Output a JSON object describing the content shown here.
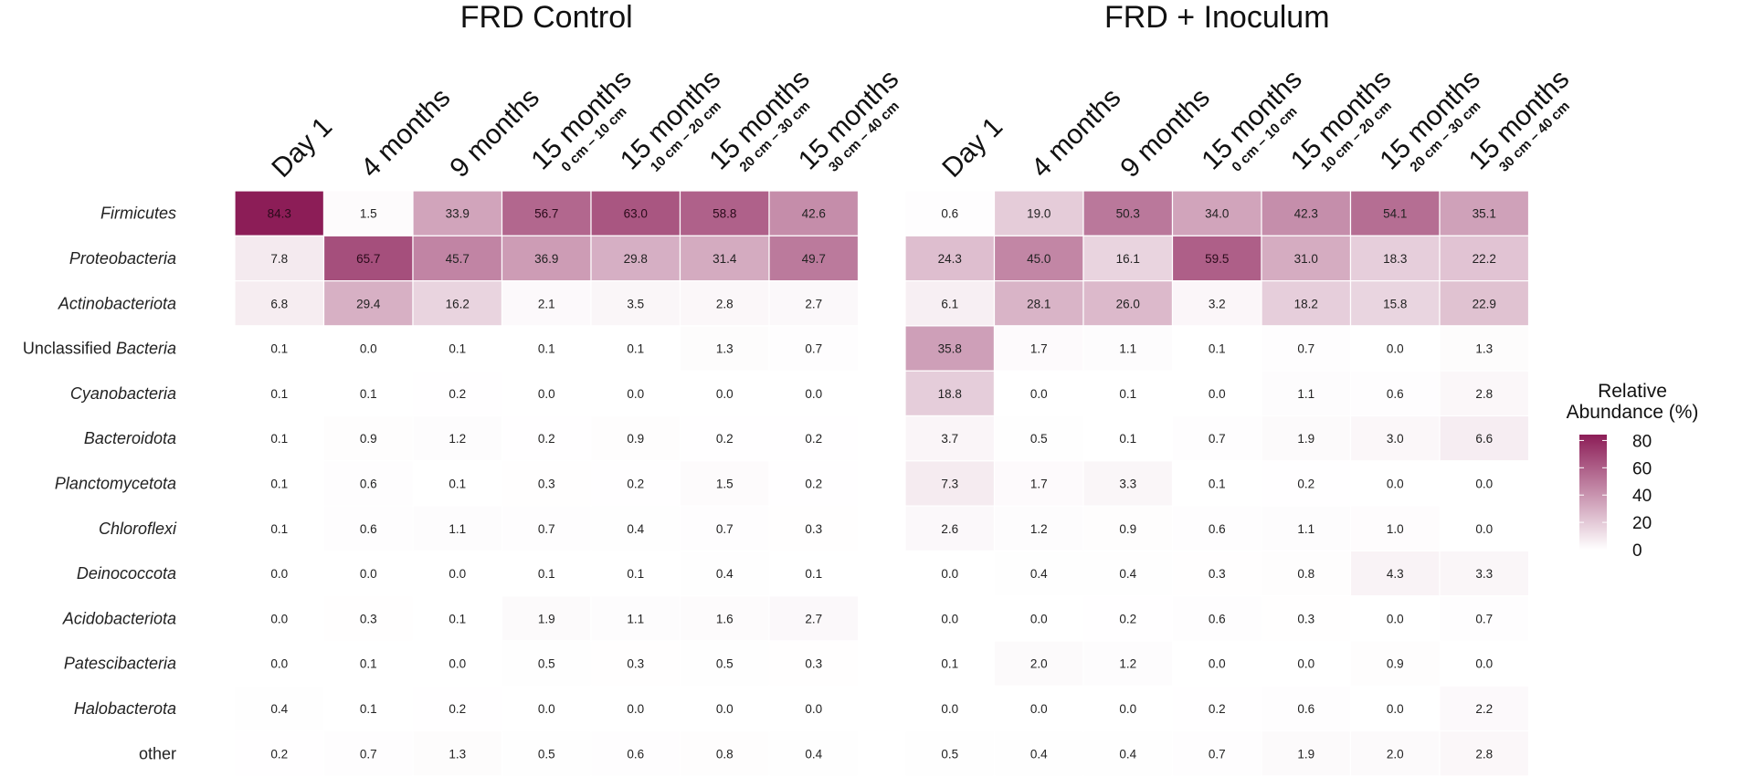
{
  "chart_data": {
    "type": "heatmap",
    "color_scale": {
      "low": "#ffffff",
      "high": "#8c1d57",
      "min": 0,
      "max": 84.3
    },
    "legend": {
      "title_line1": "Relative",
      "title_line2": "Abundance (%)",
      "ticks": [
        "80",
        "60",
        "40",
        "20",
        "0"
      ],
      "tick_values": [
        80,
        60,
        40,
        20,
        0
      ]
    },
    "rows": [
      {
        "name": "Firmicutes",
        "italic": true
      },
      {
        "name": "Proteobacteria",
        "italic": true
      },
      {
        "name": "Actinobacteriota",
        "italic": true
      },
      {
        "name": "Unclassified Bacteria",
        "prefix": "Unclassified ",
        "italic_part": "Bacteria"
      },
      {
        "name": "Cyanobacteria",
        "italic": true
      },
      {
        "name": "Bacteroidota",
        "italic": true
      },
      {
        "name": "Planctomycetota",
        "italic": true
      },
      {
        "name": "Chloroflexi",
        "italic": true
      },
      {
        "name": "Deinococcota",
        "italic": true
      },
      {
        "name": "Acidobacteriota",
        "italic": true
      },
      {
        "name": "Patescibacteria",
        "italic": true
      },
      {
        "name": "Halobacterota",
        "italic": true
      },
      {
        "name": "other",
        "italic": false
      }
    ],
    "columns": [
      {
        "main": "Day 1",
        "sub": ""
      },
      {
        "main": "4 months",
        "sub": ""
      },
      {
        "main": "9 months",
        "sub": ""
      },
      {
        "main": "15 months",
        "sub": "0 cm – 10 cm"
      },
      {
        "main": "15 months",
        "sub": "10 cm – 20 cm"
      },
      {
        "main": "15 months",
        "sub": "20 cm – 30 cm"
      },
      {
        "main": "15 months",
        "sub": "30 cm – 40 cm"
      }
    ],
    "panels": [
      {
        "title": "FRD Control",
        "values": [
          [
            84.3,
            1.5,
            33.9,
            56.7,
            63.0,
            58.8,
            42.6
          ],
          [
            7.8,
            65.7,
            45.7,
            36.9,
            29.8,
            31.4,
            49.7
          ],
          [
            6.8,
            29.4,
            16.2,
            2.1,
            3.5,
            2.8,
            2.7
          ],
          [
            0.1,
            0.0,
            0.1,
            0.1,
            0.1,
            1.3,
            0.7
          ],
          [
            0.1,
            0.1,
            0.2,
            0.0,
            0.0,
            0.0,
            0.0
          ],
          [
            0.1,
            0.9,
            1.2,
            0.2,
            0.9,
            0.2,
            0.2
          ],
          [
            0.1,
            0.6,
            0.1,
            0.3,
            0.2,
            1.5,
            0.2
          ],
          [
            0.1,
            0.6,
            1.1,
            0.7,
            0.4,
            0.7,
            0.3
          ],
          [
            0.0,
            0.0,
            0.0,
            0.1,
            0.1,
            0.4,
            0.1
          ],
          [
            0.0,
            0.3,
            0.1,
            1.9,
            1.1,
            1.6,
            2.7
          ],
          [
            0.0,
            0.1,
            0.0,
            0.5,
            0.3,
            0.5,
            0.3
          ],
          [
            0.4,
            0.1,
            0.2,
            0.0,
            0.0,
            0.0,
            0.0
          ],
          [
            0.2,
            0.7,
            1.3,
            0.5,
            0.6,
            0.8,
            0.4
          ]
        ]
      },
      {
        "title": "FRD + Inoculum",
        "values": [
          [
            0.6,
            19.0,
            50.3,
            34.0,
            42.3,
            54.1,
            35.1
          ],
          [
            24.3,
            45.0,
            16.1,
            59.5,
            31.0,
            18.3,
            22.2
          ],
          [
            6.1,
            28.1,
            26.0,
            3.2,
            18.2,
            15.8,
            22.9
          ],
          [
            35.8,
            1.7,
            1.1,
            0.1,
            0.7,
            0.0,
            1.3
          ],
          [
            18.8,
            0.0,
            0.1,
            0.0,
            1.1,
            0.6,
            2.8
          ],
          [
            3.7,
            0.5,
            0.1,
            0.7,
            1.9,
            3.0,
            6.6
          ],
          [
            7.3,
            1.7,
            3.3,
            0.1,
            0.2,
            0.0,
            0.0
          ],
          [
            2.6,
            1.2,
            0.9,
            0.6,
            1.1,
            1.0,
            0.0
          ],
          [
            0.0,
            0.4,
            0.4,
            0.3,
            0.8,
            4.3,
            3.3
          ],
          [
            0.0,
            0.0,
            0.2,
            0.6,
            0.3,
            0.0,
            0.7
          ],
          [
            0.1,
            2.0,
            1.2,
            0.0,
            0.0,
            0.9,
            0.0
          ],
          [
            0.0,
            0.0,
            0.0,
            0.2,
            0.6,
            0.0,
            2.2
          ],
          [
            0.5,
            0.4,
            0.4,
            0.7,
            1.9,
            2.0,
            2.8
          ]
        ]
      }
    ]
  }
}
